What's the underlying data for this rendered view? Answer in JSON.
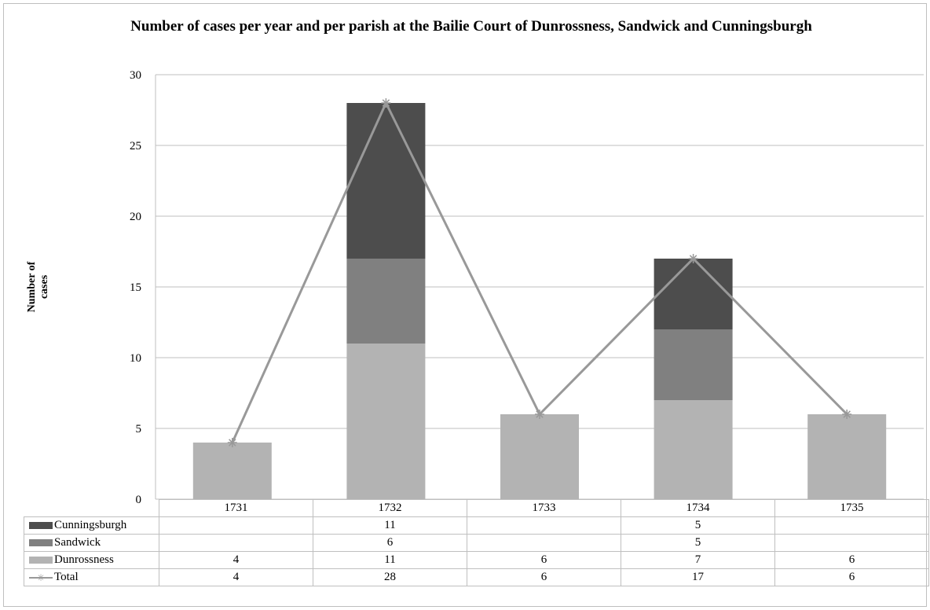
{
  "chart_data": {
    "type": "bar",
    "stacked": true,
    "title": "Number of cases per year and per parish at the Bailie Court of Dunrossness, Sandwick and Cunningsburgh",
    "ylabel": "Number of cases",
    "xlabel": "",
    "ylim": [
      0,
      30
    ],
    "yticks": [
      0,
      5,
      10,
      15,
      20,
      25,
      30
    ],
    "grid": true,
    "categories": [
      "1731",
      "1732",
      "1733",
      "1734",
      "1735"
    ],
    "series": [
      {
        "name": "Dunrossness",
        "color": "#b3b3b3",
        "values": [
          4,
          11,
          6,
          7,
          6
        ]
      },
      {
        "name": "Sandwick",
        "color": "#808080",
        "values": [
          null,
          6,
          null,
          5,
          null
        ]
      },
      {
        "name": "Cunningsburgh",
        "color": "#4d4d4d",
        "values": [
          null,
          11,
          null,
          5,
          null
        ]
      }
    ],
    "line_series": {
      "name": "Total",
      "color": "#999999",
      "marker": "asterisk",
      "values": [
        4,
        28,
        6,
        17,
        6
      ]
    },
    "data_table": {
      "rows": [
        {
          "label": "Cunningsburgh",
          "cells": [
            "",
            "11",
            "",
            "5",
            ""
          ]
        },
        {
          "label": "Sandwick",
          "cells": [
            "",
            "6",
            "",
            "5",
            ""
          ]
        },
        {
          "label": "Dunrossness",
          "cells": [
            "4",
            "11",
            "6",
            "7",
            "6"
          ]
        },
        {
          "label": "Total",
          "cells": [
            "4",
            "28",
            "6",
            "17",
            "6"
          ]
        }
      ]
    }
  }
}
